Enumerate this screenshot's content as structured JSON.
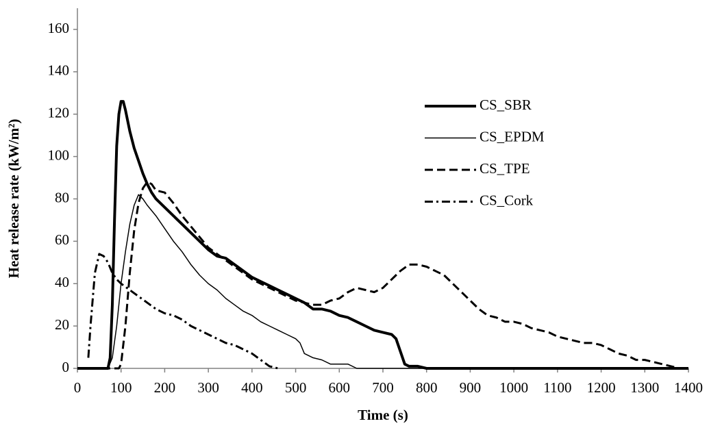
{
  "chart_data": {
    "type": "line",
    "x_label": "Time (s)",
    "y_label": "Heat release rate (kW/m²)",
    "xlim": [
      0,
      1400
    ],
    "xticks": [
      0,
      100,
      200,
      300,
      400,
      500,
      600,
      700,
      800,
      900,
      1000,
      1100,
      1200,
      1300,
      1400
    ],
    "ylim": [
      0,
      170
    ],
    "yticks": [
      0,
      20,
      40,
      60,
      80,
      100,
      120,
      140,
      160
    ],
    "grid": false,
    "legend": "right",
    "series": [
      {
        "name": "CS_SBR",
        "color": "#000000",
        "line_width": 4,
        "dash": "solid",
        "x": [
          0,
          70,
          75,
          80,
          85,
          90,
          95,
          100,
          105,
          110,
          120,
          130,
          140,
          150,
          160,
          170,
          180,
          200,
          220,
          240,
          260,
          280,
          300,
          320,
          340,
          360,
          380,
          400,
          420,
          440,
          460,
          480,
          500,
          520,
          540,
          560,
          580,
          600,
          620,
          640,
          660,
          680,
          700,
          720,
          730,
          740,
          750,
          760,
          780,
          800,
          1400
        ],
        "values": [
          0,
          0,
          5,
          30,
          70,
          105,
          120,
          126,
          126,
          122,
          112,
          104,
          98,
          92,
          87,
          83,
          80,
          76,
          72,
          68,
          64,
          60,
          56,
          53,
          52,
          49,
          46,
          43,
          41,
          39,
          37,
          35,
          33,
          31,
          28,
          28,
          27,
          25,
          24,
          22,
          20,
          18,
          17,
          16,
          14,
          8,
          2,
          1,
          1,
          0,
          0
        ]
      },
      {
        "name": "CS_EPDM",
        "color": "#000000",
        "line_width": 1.5,
        "dash": "solid",
        "x": [
          0,
          70,
          80,
          90,
          100,
          110,
          120,
          130,
          140,
          150,
          160,
          180,
          200,
          220,
          240,
          260,
          280,
          300,
          320,
          340,
          360,
          380,
          400,
          420,
          440,
          460,
          480,
          500,
          510,
          520,
          540,
          560,
          580,
          600,
          620,
          640,
          1400
        ],
        "values": [
          0,
          0,
          5,
          20,
          40,
          55,
          68,
          77,
          82,
          80,
          77,
          72,
          66,
          60,
          55,
          49,
          44,
          40,
          37,
          33,
          30,
          27,
          25,
          22,
          20,
          18,
          16,
          14,
          12,
          7,
          5,
          4,
          2,
          2,
          2,
          0,
          0
        ]
      },
      {
        "name": "CS_TPE",
        "color": "#000000",
        "line_width": 3,
        "dash": "dashed",
        "x": [
          0,
          95,
          100,
          110,
          120,
          130,
          140,
          150,
          160,
          170,
          180,
          200,
          220,
          240,
          260,
          280,
          300,
          320,
          340,
          360,
          380,
          400,
          420,
          440,
          460,
          480,
          500,
          520,
          540,
          560,
          580,
          600,
          620,
          640,
          660,
          680,
          700,
          720,
          740,
          760,
          780,
          800,
          820,
          840,
          860,
          880,
          900,
          920,
          940,
          960,
          980,
          1000,
          1020,
          1040,
          1060,
          1080,
          1100,
          1120,
          1140,
          1160,
          1180,
          1200,
          1220,
          1240,
          1260,
          1280,
          1300,
          1320,
          1340,
          1360,
          1380,
          1400
        ],
        "values": [
          0,
          0,
          2,
          20,
          45,
          65,
          78,
          85,
          88,
          87,
          84,
          83,
          78,
          72,
          67,
          62,
          57,
          54,
          51,
          48,
          45,
          42,
          40,
          38,
          36,
          34,
          32,
          31,
          30,
          30,
          32,
          33,
          36,
          38,
          37,
          36,
          38,
          42,
          46,
          49,
          49,
          48,
          46,
          44,
          40,
          36,
          32,
          28,
          25,
          24,
          22,
          22,
          21,
          19,
          18,
          17,
          15,
          14,
          13,
          12,
          12,
          11,
          9,
          7,
          6,
          4,
          4,
          3,
          2,
          1,
          0,
          0
        ]
      },
      {
        "name": "CS_Cork",
        "color": "#000000",
        "line_width": 3,
        "dash": "dashdot",
        "x": [
          25,
          30,
          40,
          50,
          60,
          70,
          80,
          90,
          100,
          120,
          140,
          160,
          180,
          200,
          220,
          240,
          260,
          280,
          300,
          320,
          340,
          360,
          380,
          400,
          420,
          440,
          460
        ],
        "values": [
          5,
          20,
          45,
          54,
          53,
          50,
          45,
          42,
          40,
          37,
          34,
          31,
          28,
          26,
          25,
          23,
          20,
          18,
          16,
          14,
          12,
          11,
          9,
          7,
          4,
          1,
          0
        ]
      }
    ]
  }
}
